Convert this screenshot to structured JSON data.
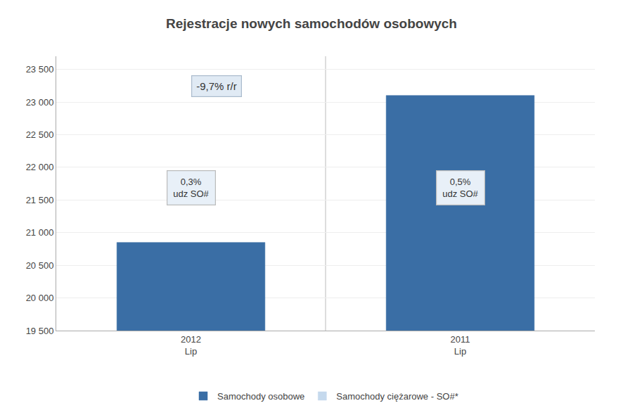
{
  "chart_data": {
    "type": "bar",
    "title": "Rejestracje nowych samochodów osobowych",
    "categories": [
      "2012\nLip",
      "2011\nLip"
    ],
    "series": [
      {
        "name": "Samochody osobowe",
        "color": "#3A6EA5",
        "values": [
          20850,
          23100
        ]
      },
      {
        "name": "Samochody ciężarowe - SO#*",
        "color": "#C5D9ED",
        "values": [
          null,
          null
        ]
      }
    ],
    "ylim": [
      19500,
      23700
    ],
    "yticks": [
      {
        "value": 19500,
        "label": "19 500"
      },
      {
        "value": 20000,
        "label": "20 000"
      },
      {
        "value": 20500,
        "label": "20 500"
      },
      {
        "value": 21000,
        "label": "21 000"
      },
      {
        "value": 21500,
        "label": "21 500"
      },
      {
        "value": 22000,
        "label": "22 000"
      },
      {
        "value": 22500,
        "label": "22 500"
      },
      {
        "value": 23000,
        "label": "23 000"
      },
      {
        "value": 23500,
        "label": "23 500"
      }
    ],
    "annotations": [
      {
        "text": "0,3%\nudz SO#",
        "category": "2012\nLip"
      },
      {
        "text": "0,5%\nudz SO#",
        "category": "2011\nLip"
      },
      {
        "text": "-9,7% r/r"
      }
    ],
    "grid": true,
    "legend": "bottom"
  }
}
